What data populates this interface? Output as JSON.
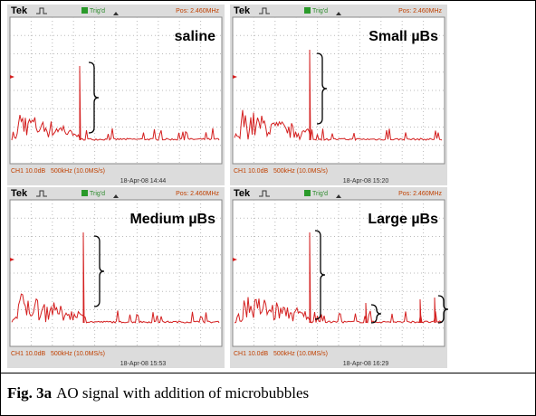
{
  "figure": {
    "panels": [
      {
        "label": "saline",
        "header": {
          "brand": "Tek",
          "trigger": "Trig'd",
          "position": "Pos: 2.460MHz"
        },
        "footer": {
          "channel": "CH1 10.0dB",
          "timebase": "500kHz (10.0MS/s)",
          "timestamp": "18-Apr-08 14:44"
        }
      },
      {
        "label": "Small µBs",
        "header": {
          "brand": "Tek",
          "trigger": "Trig'd",
          "position": "Pos: 2.460MHz"
        },
        "footer": {
          "channel": "CH1 10.0dB",
          "timebase": "500kHz (10.0MS/s)",
          "timestamp": "18-Apr-08 15:20"
        }
      },
      {
        "label": "Medium µBs",
        "header": {
          "brand": "Tek",
          "trigger": "Trig'd",
          "position": "Pos: 2.460MHz"
        },
        "footer": {
          "channel": "CH1 10.0dB",
          "timebase": "500kHz (10.0MS/s)",
          "timestamp": "18-Apr-08 15:53"
        }
      },
      {
        "label": "Large µBs",
        "header": {
          "brand": "Tek",
          "trigger": "Trig'd",
          "position": "Pos: 2.460MHz"
        },
        "footer": {
          "channel": "CH1 10.0dB",
          "timebase": "500kHz (10.0MS/s)",
          "timestamp": "18-Apr-08 16:29"
        }
      }
    ],
    "caption": {
      "label": "Fig. 3a",
      "text": "AO signal with addition of microbubbles"
    }
  }
}
